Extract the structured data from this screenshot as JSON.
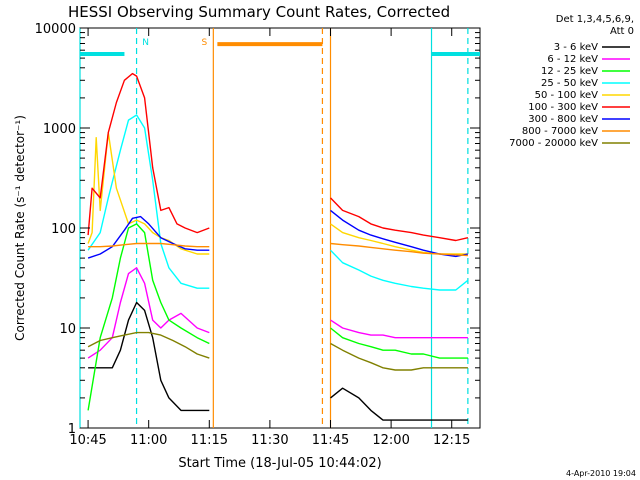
{
  "chart_data": {
    "type": "line",
    "title": "HESSI Observing Summary Count Rates, Corrected",
    "xlabel": "Start Time (18-Jul-05 10:44:02)",
    "ylabel": "Corrected Count Rate (s⁻¹ detector⁻¹)",
    "y_scale": "log",
    "ylim": [
      1,
      10000
    ],
    "xlim": [
      "10:43",
      "12:22"
    ],
    "x_ticks": [
      "10:45",
      "11:00",
      "11:15",
      "11:30",
      "11:45",
      "12:00",
      "12:15"
    ],
    "y_ticks": [
      "1",
      "10",
      "100",
      "1000",
      "10000"
    ],
    "legend_header": [
      "Det 1,3,4,5,6,9,",
      "Att 0"
    ],
    "legend_position": "right",
    "footer_date": "4-Apr-2010 19:04",
    "annotations": [
      {
        "text": "N",
        "time": "10:57",
        "color": "#00e0e0",
        "kind": "night"
      },
      {
        "text": "S",
        "time": "11:16",
        "color": "#ff8c00",
        "kind": "saa"
      }
    ],
    "shaded_bars": [
      {
        "start": "10:43",
        "end": "10:54",
        "level": 5500,
        "color": "#00e0e0"
      },
      {
        "start": "11:17",
        "end": "11:43",
        "level": 6900,
        "color": "#ff8c00"
      },
      {
        "start": "12:10",
        "end": "12:22",
        "level": 5500,
        "color": "#00e0e0"
      }
    ],
    "vertical_lines": [
      {
        "time": "10:43",
        "color": "#00e0e0",
        "dashed": false
      },
      {
        "time": "10:57",
        "color": "#00e0e0",
        "dashed": true
      },
      {
        "time": "11:16",
        "color": "#ff8c00",
        "dashed": false
      },
      {
        "time": "11:43",
        "color": "#ff8c00",
        "dashed": true
      },
      {
        "time": "11:45",
        "color": "#ff8c00",
        "dashed": false
      },
      {
        "time": "12:10",
        "color": "#00e0e0",
        "dashed": false
      },
      {
        "time": "12:19",
        "color": "#00e0e0",
        "dashed": true
      }
    ],
    "gap": {
      "start": "11:16",
      "end": "11:45"
    },
    "series": [
      {
        "name": "3 - 6 keV",
        "color": "#000000",
        "x": [
          "10:45",
          "10:48",
          "10:51",
          "10:53",
          "10:55",
          "10:57",
          "10:59",
          "11:01",
          "11:03",
          "11:05",
          "11:08",
          "11:12",
          "11:15",
          "11:45",
          "11:48",
          "11:52",
          "11:55",
          "11:58",
          "12:01",
          "12:05",
          "12:08",
          "12:12",
          "12:16",
          "12:19"
        ],
        "y": [
          4,
          4,
          4,
          6,
          12,
          18,
          15,
          8,
          3,
          2,
          1.5,
          1.5,
          1.5,
          2,
          2.5,
          2,
          1.5,
          1.2,
          1.2,
          1.2,
          1.2,
          1.2,
          1.2,
          1.2
        ]
      },
      {
        "name": "6 - 12 keV",
        "color": "#ff00ff",
        "x": [
          "10:45",
          "10:48",
          "10:51",
          "10:53",
          "10:55",
          "10:57",
          "10:59",
          "11:01",
          "11:03",
          "11:05",
          "11:08",
          "11:12",
          "11:15",
          "11:45",
          "11:48",
          "11:52",
          "11:55",
          "11:58",
          "12:01",
          "12:05",
          "12:08",
          "12:12",
          "12:16",
          "12:19"
        ],
        "y": [
          5,
          6,
          8,
          18,
          35,
          40,
          28,
          12,
          10,
          12,
          14,
          10,
          9,
          12,
          10,
          9,
          8.5,
          8.5,
          8,
          8,
          8,
          8,
          8,
          8
        ]
      },
      {
        "name": "12 - 25 keV",
        "color": "#00ff00",
        "x": [
          "10:45",
          "10:48",
          "10:51",
          "10:53",
          "10:55",
          "10:57",
          "10:59",
          "11:01",
          "11:03",
          "11:05",
          "11:08",
          "11:12",
          "11:15",
          "11:45",
          "11:48",
          "11:52",
          "11:55",
          "11:58",
          "12:01",
          "12:05",
          "12:08",
          "12:12",
          "12:16",
          "12:19"
        ],
        "y": [
          1.5,
          8,
          20,
          50,
          100,
          110,
          90,
          30,
          18,
          12,
          10,
          8,
          7,
          10,
          8,
          7,
          6.5,
          6,
          6,
          5.5,
          5.5,
          5,
          5,
          5
        ]
      },
      {
        "name": "25 - 50 keV",
        "color": "#00ffff",
        "x": [
          "10:45",
          "10:48",
          "10:50",
          "10:53",
          "10:55",
          "10:57",
          "10:59",
          "11:01",
          "11:03",
          "11:05",
          "11:08",
          "11:12",
          "11:15",
          "11:45",
          "11:48",
          "11:52",
          "11:55",
          "11:58",
          "12:01",
          "12:05",
          "12:08",
          "12:12",
          "12:16",
          "12:19"
        ],
        "y": [
          60,
          90,
          200,
          600,
          1200,
          1350,
          1000,
          300,
          70,
          40,
          28,
          25,
          25,
          60,
          45,
          38,
          33,
          30,
          28,
          26,
          25,
          24,
          24,
          30
        ]
      },
      {
        "name": "50 - 100 keV",
        "color": "#ffd700",
        "x": [
          "10:45",
          "10:46",
          "10:47",
          "10:48",
          "10:50",
          "10:52",
          "10:55",
          "10:57",
          "10:59",
          "11:01",
          "11:03",
          "11:05",
          "11:08",
          "11:12",
          "11:15",
          "11:45",
          "11:48",
          "11:52",
          "11:55",
          "11:58",
          "12:01",
          "12:05",
          "12:08",
          "12:12",
          "12:16",
          "12:19"
        ],
        "y": [
          70,
          90,
          800,
          150,
          900,
          250,
          110,
          120,
          110,
          90,
          80,
          75,
          62,
          55,
          55,
          110,
          90,
          80,
          75,
          70,
          65,
          60,
          57,
          55,
          55,
          55
        ]
      },
      {
        "name": "100 - 300 keV",
        "color": "#ff0000",
        "x": [
          "10:45",
          "10:46",
          "10:48",
          "10:50",
          "10:52",
          "10:54",
          "10:56",
          "10:57",
          "10:59",
          "11:01",
          "11:03",
          "11:05",
          "11:07",
          "11:09",
          "11:12",
          "11:15",
          "11:45",
          "11:48",
          "11:52",
          "11:55",
          "11:58",
          "12:01",
          "12:05",
          "12:08",
          "12:12",
          "12:16",
          "12:19"
        ],
        "y": [
          85,
          250,
          200,
          900,
          1800,
          3000,
          3500,
          3300,
          2000,
          400,
          150,
          160,
          110,
          100,
          90,
          100,
          200,
          150,
          130,
          110,
          100,
          95,
          90,
          85,
          80,
          75,
          80
        ]
      },
      {
        "name": "300 - 800 keV",
        "color": "#0000ff",
        "x": [
          "10:45",
          "10:48",
          "10:51",
          "10:54",
          "10:56",
          "10:58",
          "11:00",
          "11:03",
          "11:06",
          "11:09",
          "11:12",
          "11:15",
          "11:45",
          "11:48",
          "11:52",
          "11:55",
          "11:58",
          "12:01",
          "12:05",
          "12:08",
          "12:12",
          "12:16",
          "12:19"
        ],
        "y": [
          50,
          55,
          65,
          95,
          125,
          130,
          110,
          80,
          70,
          62,
          60,
          60,
          150,
          120,
          95,
          85,
          78,
          72,
          65,
          60,
          55,
          52,
          55
        ]
      },
      {
        "name": "800 - 7000 keV",
        "color": "#ff8c00",
        "x": [
          "10:45",
          "10:48",
          "10:51",
          "10:54",
          "10:57",
          "11:00",
          "11:03",
          "11:06",
          "11:09",
          "11:12",
          "11:15",
          "11:45",
          "11:48",
          "11:52",
          "11:55",
          "11:58",
          "12:01",
          "12:05",
          "12:08",
          "12:12",
          "12:16",
          "12:19"
        ],
        "y": [
          65,
          65,
          66,
          68,
          70,
          70,
          70,
          68,
          66,
          65,
          65,
          70,
          68,
          66,
          64,
          62,
          60,
          58,
          56,
          55,
          54,
          53
        ]
      },
      {
        "name": "7000 - 20000 keV",
        "color": "#808000",
        "x": [
          "10:45",
          "10:48",
          "10:51",
          "10:54",
          "10:57",
          "11:00",
          "11:03",
          "11:06",
          "11:09",
          "11:12",
          "11:15",
          "11:45",
          "11:48",
          "11:52",
          "11:55",
          "11:58",
          "12:01",
          "12:05",
          "12:08",
          "12:12",
          "12:16",
          "12:19"
        ],
        "y": [
          6.5,
          7.5,
          8,
          8.5,
          9,
          9,
          8.5,
          7.5,
          6.5,
          5.5,
          5,
          7,
          6,
          5,
          4.5,
          4,
          3.8,
          3.8,
          4,
          4,
          4,
          4
        ]
      }
    ]
  }
}
